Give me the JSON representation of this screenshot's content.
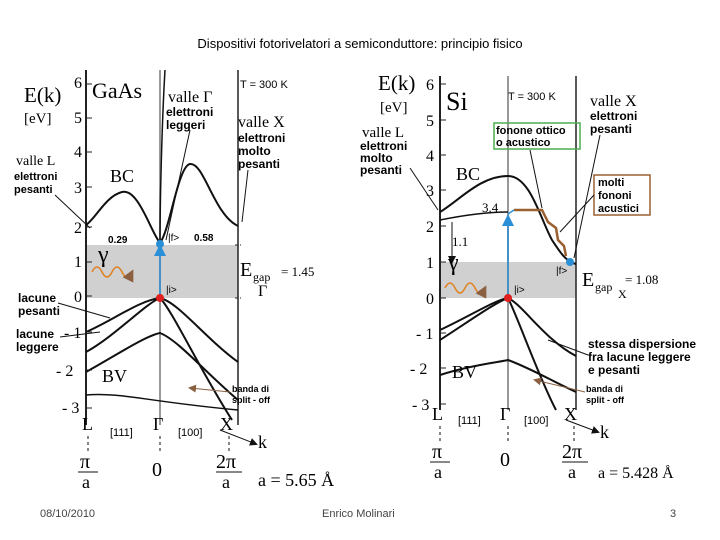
{
  "slide_title": "Dispositivi fotorivelatori a semiconduttore: principio fisico",
  "footer": {
    "date": "08/10/2010",
    "author": "Enrico Molinari",
    "page": "3"
  },
  "colors": {
    "gap_band": "#d0d0d0",
    "photon": "#e08020",
    "curve": "#111111",
    "transition": "#2a8fd6",
    "hole": "#e02020",
    "electron": "#2a8fd6",
    "phonon": "#9a6030"
  },
  "gaas": {
    "energy_axis_label": "E(k)",
    "energy_unit": "[eV]",
    "material": "GaAs",
    "temperature": "T = 300 K",
    "y_ticks": [
      "6",
      "5",
      "4",
      "3",
      "2",
      "1",
      "0",
      "- 1",
      "- 2",
      "- 3"
    ],
    "bc_label": "BC",
    "bv_label": "BV",
    "gamma_valley": [
      "valle Γ",
      "elettroni",
      "leggeri"
    ],
    "x_valley": [
      "valle X",
      "elettroni",
      "molto",
      "pesanti"
    ],
    "l_valley": [
      "valle L",
      "elettroni",
      "pesanti"
    ],
    "value_029": "0.29",
    "f_label": "|f>",
    "value_058": "0.58",
    "i_label": "|i>",
    "photon_label": "γ",
    "gap_label": "E",
    "gap_sub": "gap",
    "gap_value": "= 1.45",
    "gap_point": "Γ",
    "heavy_holes": [
      "lacune",
      "pesanti"
    ],
    "light_holes": [
      "lacune",
      "leggere"
    ],
    "split_off": [
      "banda di",
      "split - off"
    ],
    "k_points": [
      "L",
      "[111]",
      "Γ",
      "[100]",
      "X"
    ],
    "k_label": "k",
    "bottom_left_num": "π",
    "bottom_left_den": "a",
    "bottom_zero": "0",
    "bottom_right_num": "2π",
    "bottom_right_den": "a",
    "lattice": "a = 5.65 Å"
  },
  "si": {
    "energy_axis_label": "E(k)",
    "energy_unit": "[eV]",
    "material": "Si",
    "temperature": "T = 300 K",
    "y_ticks": [
      "6",
      "5",
      "4",
      "3",
      "2",
      "1",
      "0",
      "- 1",
      "- 2",
      "- 3"
    ],
    "bc_label": "BC",
    "bv_label": "BV",
    "x_valley": [
      "valle X",
      "elettroni",
      "pesanti"
    ],
    "l_valley": [
      "valle L",
      "elettroni",
      "molto",
      "pesanti"
    ],
    "phonon_box": [
      "fonone ottico",
      "o acustico"
    ],
    "many_phonons": [
      "molti",
      "fononi",
      "acustici"
    ],
    "value_34": "3.4",
    "value_11": "1.1",
    "f_label": "|f>",
    "i_label": "|i>",
    "photon_label": "γ",
    "gap_label": "E",
    "gap_sub": "gap",
    "gap_value": "= 1.08",
    "gap_point": "X",
    "same_dispersion": [
      "stessa dispersione",
      "fra lacune leggere",
      "e pesanti"
    ],
    "split_off": [
      "banda di",
      "split - off"
    ],
    "k_points": [
      "L",
      "[111]",
      "Γ",
      "[100]",
      "X"
    ],
    "k_label": "k",
    "bottom_left_num": "π",
    "bottom_left_den": "a",
    "bottom_zero": "0",
    "bottom_right_num": "2π",
    "bottom_right_den": "a",
    "lattice": "a = 5.428 Å"
  }
}
